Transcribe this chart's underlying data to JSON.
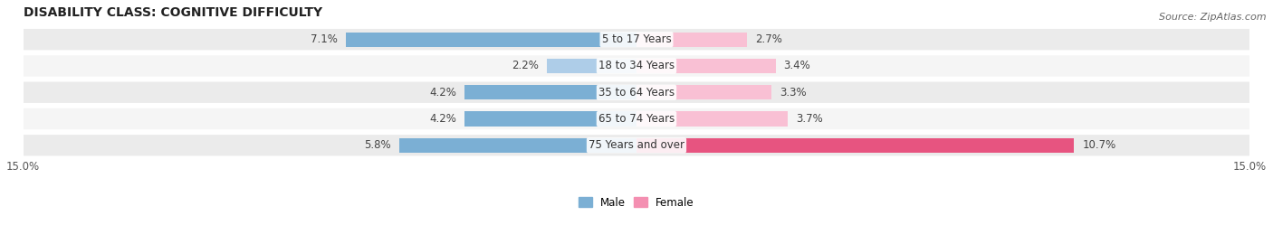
{
  "title": "DISABILITY CLASS: COGNITIVE DIFFICULTY",
  "source": "Source: ZipAtlas.com",
  "categories": [
    "5 to 17 Years",
    "18 to 34 Years",
    "35 to 64 Years",
    "65 to 74 Years",
    "75 Years and over"
  ],
  "male_values": [
    7.1,
    2.2,
    4.2,
    4.2,
    5.8
  ],
  "female_values": [
    2.7,
    3.4,
    3.3,
    3.7,
    10.7
  ],
  "male_colors": [
    "#7bafd4",
    "#aecde8",
    "#7bafd4",
    "#7bafd4",
    "#7bafd4"
  ],
  "female_colors": [
    "#f9c0d4",
    "#f9c0d4",
    "#f9c0d4",
    "#f9c0d4",
    "#e75480"
  ],
  "row_bg_odd": "#ebebeb",
  "row_bg_even": "#f5f5f5",
  "axis_max": 15.0,
  "legend_male_color": "#7bafd4",
  "legend_female_color": "#f48fb1",
  "legend_male": "Male",
  "legend_female": "Female",
  "title_fontsize": 10,
  "label_fontsize": 8.5,
  "tick_fontsize": 8.5,
  "source_fontsize": 8
}
